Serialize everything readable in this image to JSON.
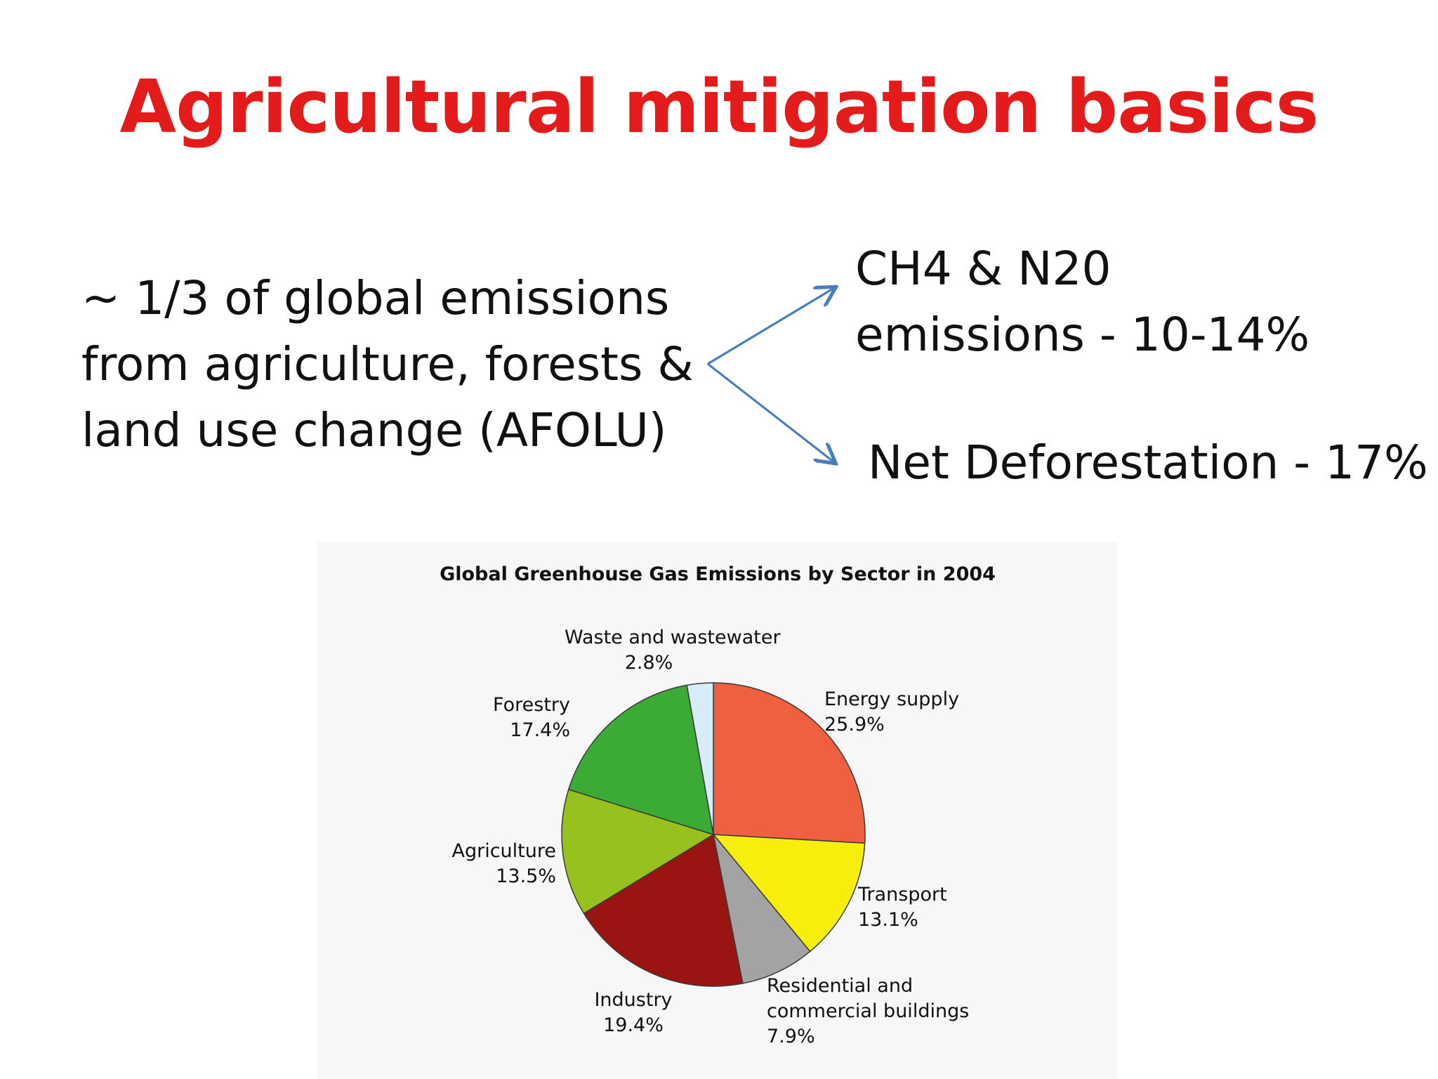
{
  "slide": {
    "title": "Agricultural mitigation basics",
    "title_color": "#e31b1b",
    "lead_lines": [
      "~ 1/3 of global emissions",
      "from agriculture, forests &",
      "land use change (AFOLU)"
    ],
    "branch_top_lines": [
      "CH4 &  N20",
      "emissions - 10-14%"
    ],
    "branch_bottom": "Net Deforestation - 17%",
    "arrow_color": "#4a7ebb"
  },
  "chart_data": {
    "type": "pie",
    "title": "Global Greenhouse Gas Emissions by Sector in 2004",
    "slices": [
      {
        "name": "Energy supply",
        "value": 25.9,
        "label": "25.9%",
        "color": "#f05f40"
      },
      {
        "name": "Transport",
        "value": 13.1,
        "label": "13.1%",
        "color": "#f7ee0d"
      },
      {
        "name": "Residential and commercial buildings",
        "name_lines": [
          "Residential and",
          "commercial buildings"
        ],
        "value": 7.9,
        "label": "7.9%",
        "color": "#a3a3a3"
      },
      {
        "name": "Industry",
        "value": 19.4,
        "label": "19.4%",
        "color": "#9a1512"
      },
      {
        "name": "Agriculture",
        "value": 13.5,
        "label": "13.5%",
        "color": "#96c11f"
      },
      {
        "name": "Forestry",
        "value": 17.4,
        "label": "17.4%",
        "color": "#3bab36"
      },
      {
        "name": "Waste and wastewater",
        "value": 2.8,
        "label": "2.8%",
        "color": "#d6ecf6"
      }
    ]
  }
}
